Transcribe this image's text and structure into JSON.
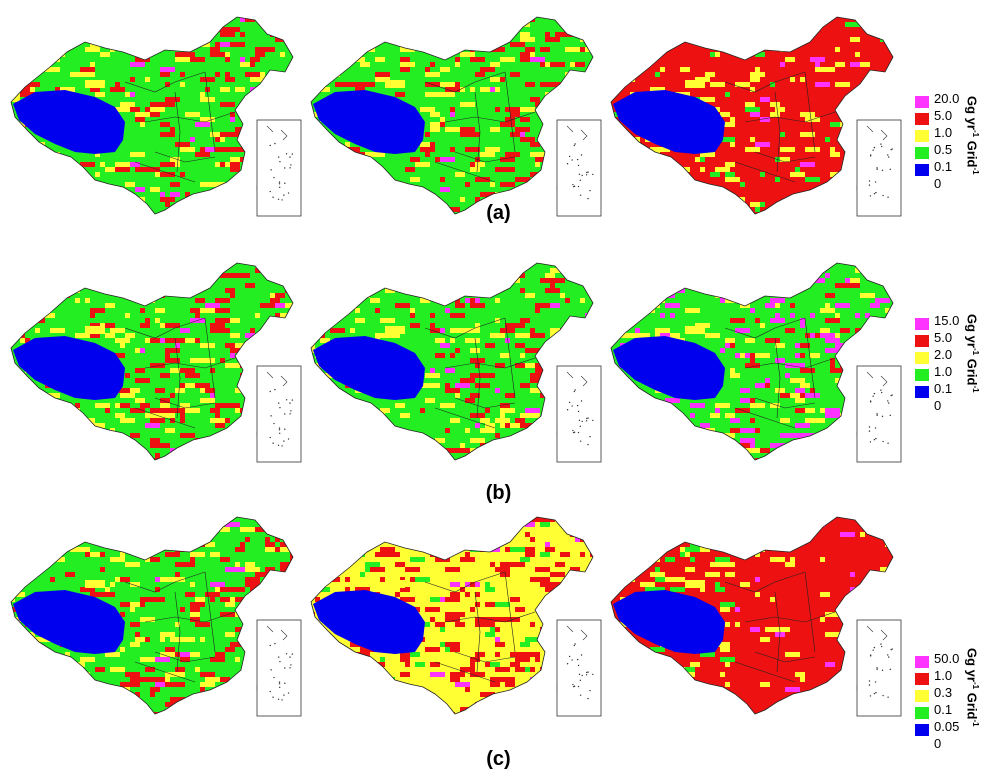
{
  "colors": {
    "magenta": "#ff33ff",
    "red": "#ee1111",
    "yellow": "#ffff33",
    "green": "#22ee22",
    "blue": "#0000ee",
    "border": "#222222"
  },
  "rows": [
    {
      "label": "(a)",
      "unit_pre": "Gg yr",
      "unit_sup1": "-1",
      "unit_mid": " Grid",
      "unit_sup2": "-1",
      "legend": [
        "20.0",
        "5.0",
        "1.0",
        "0.5",
        "0.1",
        "0"
      ],
      "legend_colors": [
        "magenta",
        "red",
        "yellow",
        "green",
        "blue"
      ],
      "maps": [
        {
          "name": "map-a-1",
          "band_colors": [
            "green",
            "yellow",
            "red"
          ],
          "west": "blue",
          "hot": "red",
          "extra": "magenta"
        },
        {
          "name": "map-a-2",
          "band_colors": [
            "green",
            "yellow",
            "red"
          ],
          "west": "blue",
          "hot": "red",
          "extra": "magenta"
        },
        {
          "name": "map-a-3",
          "band_colors": [
            "red",
            "yellow",
            "green"
          ],
          "west": "blue",
          "hot": "red",
          "extra": "magenta"
        }
      ]
    },
    {
      "label": "(b)",
      "unit_pre": "Gg yr",
      "unit_sup1": "-1",
      "unit_mid": " Grid",
      "unit_sup2": "-1",
      "legend": [
        "15.0",
        "5.0",
        "2.0",
        "1.0",
        "0.1",
        "0"
      ],
      "legend_colors": [
        "magenta",
        "red",
        "yellow",
        "green",
        "blue"
      ],
      "maps": [
        {
          "name": "map-b-1",
          "band_colors": [
            "green",
            "yellow",
            "red"
          ],
          "west": "blue",
          "hot": "red",
          "extra": "magenta"
        },
        {
          "name": "map-b-2",
          "band_colors": [
            "green",
            "yellow",
            "red"
          ],
          "west": "blue",
          "hot": "red",
          "extra": "magenta"
        },
        {
          "name": "map-b-3",
          "band_colors": [
            "green",
            "yellow",
            "red"
          ],
          "west": "blue",
          "hot": "magenta",
          "extra": "red"
        }
      ]
    },
    {
      "label": "(c)",
      "unit_pre": "Gg yr",
      "unit_sup1": "-1",
      "unit_mid": " Grid",
      "unit_sup2": "-1",
      "legend": [
        "50.0",
        "1.0",
        "0.3",
        "0.1",
        "0.05",
        "0"
      ],
      "legend_colors": [
        "magenta",
        "red",
        "yellow",
        "green",
        "blue"
      ],
      "maps": [
        {
          "name": "map-c-1",
          "band_colors": [
            "green",
            "yellow",
            "red"
          ],
          "west": "blue",
          "hot": "red",
          "extra": "magenta"
        },
        {
          "name": "map-c-2",
          "band_colors": [
            "yellow",
            "red",
            "green"
          ],
          "west": "blue",
          "hot": "red",
          "extra": "magenta"
        },
        {
          "name": "map-c-3",
          "band_colors": [
            "red",
            "yellow",
            "red"
          ],
          "west": "blue",
          "hot": "red",
          "extra": "magenta"
        }
      ]
    }
  ]
}
